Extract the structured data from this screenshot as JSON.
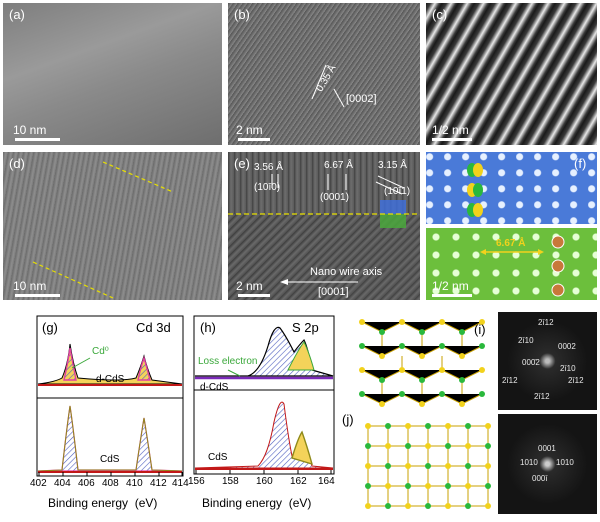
{
  "panels": {
    "a": {
      "label": "(a)",
      "scale": "10 nm"
    },
    "b": {
      "label": "(b)",
      "scale": "2 nm",
      "spacing": "0.35 Å",
      "direction": "[0002]"
    },
    "c": {
      "label": "(c)",
      "scale": "1/2 nm"
    },
    "d": {
      "label": "(d)",
      "scale": "10 nm"
    },
    "e": {
      "label": "(e)",
      "scale": "2 nm",
      "d1": "3.56 Å",
      "h1": "(10ī0)",
      "d2": "6.67 Å",
      "h2": "(0001)",
      "d3": "3.15 Å",
      "h3": "(10ī1)",
      "axis_label": "Nano wire axis",
      "axis_dir": "[0001]"
    },
    "f": {
      "label": "(f)",
      "scale": "1/2 nm",
      "spacing": "6.67 Å"
    },
    "g": {
      "label": "(g)",
      "title": "Cd 3d",
      "cd0": "Cd⁰",
      "sample_top": "d-CdS",
      "sample_bottom": "CdS",
      "xlabel": "Binding energy  (eV)",
      "ticks": [
        "402",
        "404",
        "406",
        "408",
        "410",
        "412",
        "414"
      ]
    },
    "h": {
      "label": "(h)",
      "title": "S 2p",
      "loss": "Loss electron",
      "sample_top": "d-CdS",
      "sample_bottom": "CdS",
      "xlabel": "Binding energy  (eV)",
      "ticks": [
        "156",
        "158",
        "160",
        "162",
        "164"
      ]
    },
    "i": {
      "label": "(i)",
      "fft": [
        "2ī12",
        "2ī10",
        "0002",
        "000̄2",
        "2ī10",
        "2ī12",
        "2ī12",
        "2ī12"
      ]
    },
    "j": {
      "label": "(j)",
      "fft": [
        "0001",
        "1010",
        "1010",
        "000ī"
      ]
    }
  },
  "colors": {
    "magenta": "#e040a0",
    "yellow": "#f4d35a",
    "hatch": "#5060c0",
    "green": "#3aa83a",
    "olive": "#8f8a1a",
    "red": "#c21818",
    "purple": "#7a2ab8",
    "atom_green": "#2ab83c",
    "atom_yellow": "#f2d21c"
  }
}
